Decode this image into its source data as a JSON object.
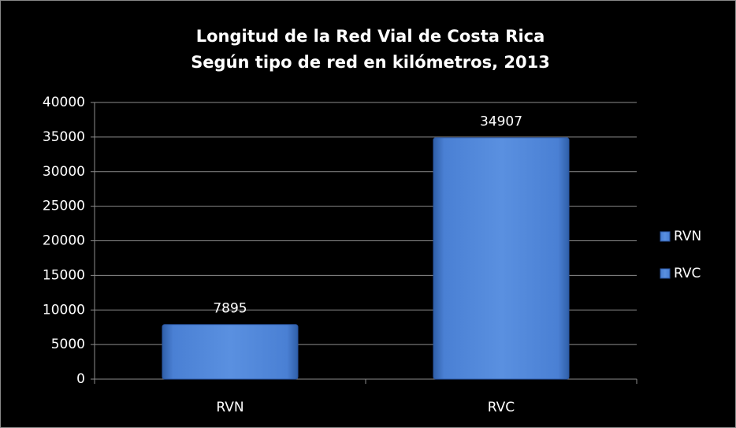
{
  "chart_data": {
    "type": "bar",
    "title": "Longitud de la Red Vial de Costa Rica",
    "subtitle": "Según tipo de red en kilómetros, 2013",
    "categories": [
      "RVN",
      "RVC"
    ],
    "values": [
      7895,
      34907
    ],
    "color": "#4a80d4",
    "ylim": [
      0,
      40000
    ],
    "yticks": [
      0,
      5000,
      10000,
      15000,
      20000,
      25000,
      30000,
      35000,
      40000
    ],
    "grid": true,
    "legend": "right"
  }
}
